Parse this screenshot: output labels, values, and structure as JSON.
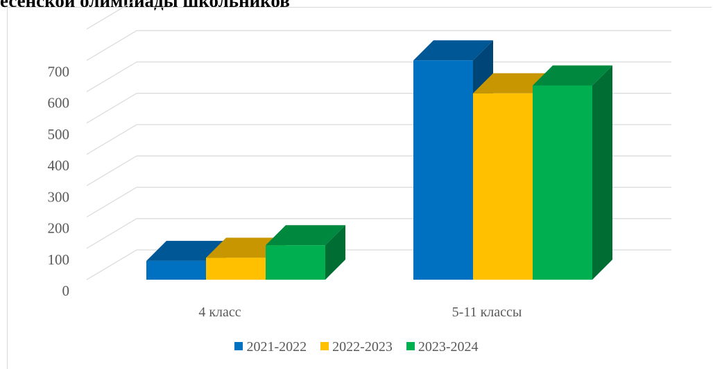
{
  "title": "есенской олимпиады школьников",
  "chart_data": {
    "type": "bar",
    "title": "есенской олимпиады школьников",
    "categories": [
      "4 класс",
      "5-11 классы"
    ],
    "series": [
      {
        "name": "2021-2022",
        "color": "#0070C0",
        "values": [
          60,
          700
        ]
      },
      {
        "name": "2022-2023",
        "color": "#FFC000",
        "values": [
          70,
          595
        ]
      },
      {
        "name": "2023-2024",
        "color": "#00B050",
        "values": [
          110,
          620
        ]
      }
    ],
    "yticks": [
      0,
      100,
      200,
      300,
      400,
      500,
      600,
      700
    ],
    "ylim": [
      0,
      700
    ],
    "grid": true,
    "legend": "bottom"
  }
}
